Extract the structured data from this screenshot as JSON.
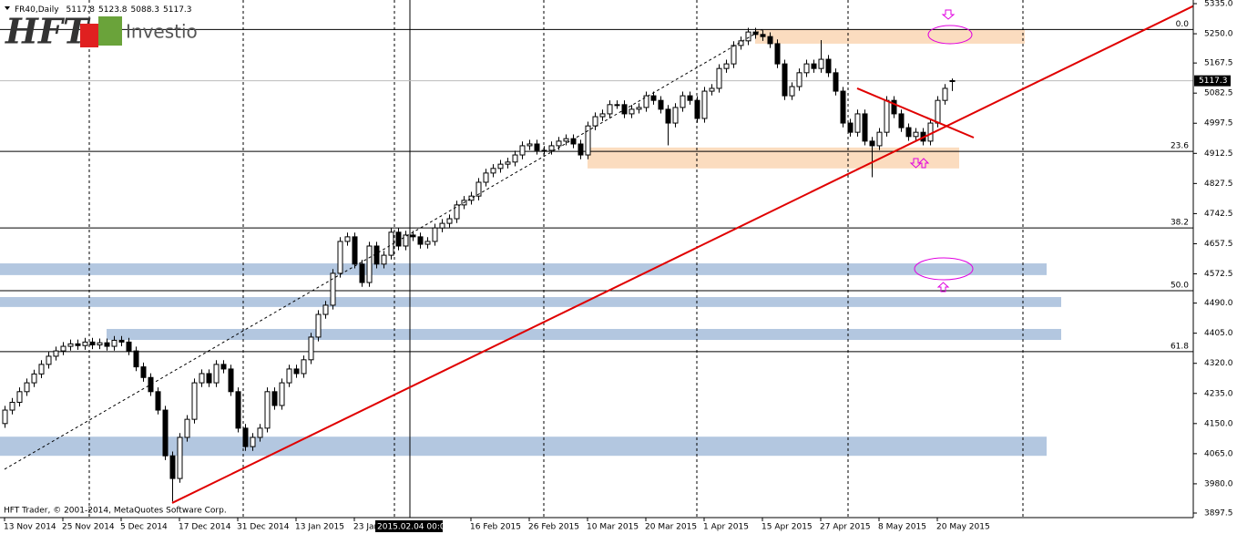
{
  "chart_data": {
    "type": "candlestick",
    "symbol": "FR40,Daily",
    "logo": {
      "mark": "HFT",
      "name": "Investio"
    },
    "footer": "HFT Trader, © 2001-2014, MetaQuotes Software Corp.",
    "crosshair_label": "2015.02.04 00:00",
    "ylim": [
      3897.5,
      5335
    ],
    "yticks": [
      {
        "value": 5335,
        "label": "5335.0"
      },
      {
        "value": 5250,
        "label": "5250.0"
      },
      {
        "value": 5167.5,
        "label": "5167.5"
      },
      {
        "value": 5082.5,
        "label": "5082.5"
      },
      {
        "value": 4997.5,
        "label": "4997.5"
      },
      {
        "value": 4912.5,
        "label": "4912.5"
      },
      {
        "value": 4827.5,
        "label": "4827.5"
      },
      {
        "value": 4742.5,
        "label": "4742.5"
      },
      {
        "value": 4657.5,
        "label": "4657.5"
      },
      {
        "value": 4572.5,
        "label": "4572.5"
      },
      {
        "value": 4490,
        "label": "4490.0"
      },
      {
        "value": 4405,
        "label": "4405.0"
      },
      {
        "value": 4320,
        "label": "4320.0"
      },
      {
        "value": 4235,
        "label": "4235.0"
      },
      {
        "value": 4150,
        "label": "4150.0"
      },
      {
        "value": 4065,
        "label": "4065.0"
      },
      {
        "value": 3980,
        "label": "3980.0"
      },
      {
        "value": 3897.5,
        "label": "3897.5"
      }
    ],
    "categories": [
      "13 Nov 2014",
      null,
      null,
      null,
      null,
      null,
      null,
      null,
      "25 Nov 2014",
      null,
      null,
      null,
      null,
      null,
      null,
      null,
      "5 Dec 2014",
      null,
      null,
      null,
      null,
      null,
      null,
      null,
      "17 Dec 2014",
      null,
      null,
      null,
      null,
      null,
      null,
      null,
      "31 Dec 2014",
      null,
      null,
      null,
      null,
      null,
      null,
      null,
      "13 Jan 2015",
      null,
      null,
      null,
      null,
      null,
      null,
      null,
      "23 Jan 2015",
      null,
      null,
      null,
      null,
      null,
      null,
      null,
      null,
      null,
      null,
      null,
      null,
      null,
      null,
      null,
      "16 Feb 2015",
      null,
      null,
      null,
      null,
      null,
      null,
      null,
      "26 Feb 2015",
      null,
      null,
      null,
      null,
      null,
      null,
      null,
      "10 Mar 2015",
      null,
      null,
      null,
      null,
      null,
      null,
      null,
      "20 Mar 2015",
      null,
      null,
      null,
      null,
      null,
      null,
      null,
      "1 Apr 2015",
      null,
      null,
      null,
      null,
      null,
      null,
      null,
      "15 Apr 2015",
      null,
      null,
      null,
      null,
      null,
      null,
      null,
      "27 Apr 2015",
      null,
      null,
      null,
      null,
      null,
      null,
      null,
      "8 May 2015",
      null,
      null,
      null,
      null,
      null,
      null,
      null,
      "20 May 2015",
      null,
      null
    ],
    "open": [
      4150,
      4188,
      4210,
      4240,
      4265,
      4290,
      4317,
      4340,
      4355,
      4368,
      4375,
      4370,
      4380,
      4372,
      4378,
      4368,
      4385,
      4380,
      4355,
      4310,
      4280,
      4240,
      4188,
      4059,
      3995,
      4111,
      4162,
      4265,
      4291,
      4265,
      4317,
      4304,
      4240,
      4137,
      4085,
      4111,
      4137,
      4240,
      4201,
      4265,
      4304,
      4291,
      4330,
      4394,
      4458,
      4484,
      4574,
      4664,
      4677,
      4600,
      4548,
      4651,
      4600,
      4625,
      4690,
      4651,
      4682,
      4677,
      4656,
      4664,
      4702,
      4715,
      4728,
      4767,
      4780,
      4792,
      4831,
      4857,
      4870,
      4882,
      4888,
      4908,
      4934,
      4939,
      4921,
      4921,
      4934,
      4947,
      4954,
      4939,
      4908,
      4990,
      5016,
      5024,
      5050,
      5050,
      5024,
      5037,
      5042,
      5075,
      5062,
      5037,
      4998,
      5042,
      5075,
      5062,
      5011,
      5088,
      5096,
      5152,
      5165,
      5217,
      5230,
      5255,
      5248,
      5242,
      5222,
      5165,
      5075,
      5101,
      5140,
      5165,
      5152,
      5178,
      5140,
      5088,
      4998,
      4972,
      5024,
      4947,
      4934,
      4972,
      5062,
      5024,
      4985,
      4960,
      4972,
      4947,
      4998,
      5062,
      5117.8
    ],
    "high": [
      4200,
      4222,
      4252,
      4277,
      4302,
      4329,
      4352,
      4367,
      4380,
      4387,
      4387,
      4392,
      4392,
      4390,
      4390,
      4397,
      4397,
      4392,
      4367,
      4322,
      4292,
      4252,
      4200,
      4071,
      4123,
      4174,
      4277,
      4303,
      4303,
      4329,
      4329,
      4316,
      4252,
      4149,
      4123,
      4149,
      4252,
      4252,
      4277,
      4316,
      4316,
      4342,
      4406,
      4470,
      4496,
      4586,
      4676,
      4689,
      4689,
      4612,
      4663,
      4663,
      4637,
      4702,
      4702,
      4694,
      4694,
      4689,
      4676,
      4714,
      4727,
      4740,
      4779,
      4792,
      4804,
      4843,
      4869,
      4882,
      4894,
      4900,
      4920,
      4946,
      4951,
      4951,
      4933,
      4946,
      4959,
      4966,
      4966,
      4951,
      5002,
      5028,
      5036,
      5062,
      5062,
      5062,
      5049,
      5054,
      5087,
      5087,
      5074,
      5049,
      5054,
      5087,
      5087,
      5074,
      5100,
      5108,
      5164,
      5177,
      5229,
      5242,
      5267,
      5267,
      5260,
      5254,
      5234,
      5177,
      5113,
      5152,
      5177,
      5177,
      5232,
      5190,
      5152,
      5100,
      5010,
      5036,
      5036,
      4959,
      4984,
      5074,
      5074,
      5036,
      4997,
      4984,
      4984,
      5010,
      5074,
      5108,
      5123.8
    ],
    "low": [
      4138,
      4176,
      4198,
      4228,
      4253,
      4278,
      4305,
      4328,
      4343,
      4356,
      4358,
      4358,
      4360,
      4360,
      4356,
      4356,
      4368,
      4343,
      4298,
      4268,
      4228,
      4176,
      4047,
      3930,
      3983,
      4099,
      4150,
      4253,
      4253,
      4253,
      4292,
      4228,
      4125,
      4073,
      4073,
      4099,
      4125,
      4189,
      4189,
      4253,
      4279,
      4279,
      4318,
      4382,
      4446,
      4472,
      4562,
      4652,
      4588,
      4536,
      4536,
      4588,
      4588,
      4613,
      4639,
      4639,
      4665,
      4644,
      4644,
      4652,
      4690,
      4703,
      4716,
      4755,
      4768,
      4780,
      4819,
      4845,
      4858,
      4870,
      4876,
      4896,
      4922,
      4909,
      4909,
      4909,
      4922,
      4935,
      4927,
      4896,
      4896,
      4978,
      5004,
      5012,
      5038,
      5012,
      5012,
      5025,
      5030,
      5050,
      5025,
      4935,
      4986,
      5030,
      5050,
      4999,
      4999,
      5076,
      5084,
      5140,
      5153,
      5205,
      5218,
      5236,
      5230,
      5210,
      5153,
      5063,
      5063,
      5089,
      5128,
      5140,
      5140,
      5128,
      5076,
      4986,
      4960,
      4960,
      4935,
      4845,
      4922,
      4960,
      5012,
      4973,
      4948,
      4948,
      4935,
      4935,
      4986,
      5050,
      5088.3
    ],
    "close": [
      4188,
      4210,
      4240,
      4265,
      4290,
      4317,
      4340,
      4355,
      4368,
      4375,
      4370,
      4380,
      4372,
      4378,
      4368,
      4385,
      4380,
      4355,
      4310,
      4280,
      4240,
      4188,
      4059,
      3995,
      4111,
      4162,
      4265,
      4291,
      4265,
      4317,
      4304,
      4240,
      4137,
      4085,
      4111,
      4137,
      4240,
      4201,
      4265,
      4304,
      4291,
      4330,
      4394,
      4458,
      4484,
      4574,
      4664,
      4677,
      4600,
      4548,
      4651,
      4600,
      4625,
      4690,
      4651,
      4682,
      4677,
      4656,
      4664,
      4702,
      4715,
      4728,
      4767,
      4780,
      4792,
      4831,
      4857,
      4870,
      4882,
      4888,
      4908,
      4934,
      4939,
      4921,
      4921,
      4934,
      4947,
      4954,
      4939,
      4908,
      4990,
      5016,
      5024,
      5050,
      5050,
      5024,
      5037,
      5042,
      5075,
      5062,
      5037,
      4998,
      5042,
      5075,
      5062,
      5011,
      5088,
      5096,
      5152,
      5165,
      5217,
      5230,
      5255,
      5248,
      5242,
      5222,
      5165,
      5075,
      5101,
      5140,
      5165,
      5152,
      5178,
      5140,
      5088,
      4998,
      4972,
      5024,
      4947,
      4934,
      4972,
      5062,
      5024,
      4985,
      4960,
      4972,
      4947,
      4998,
      5062,
      5096,
      5117.3
    ],
    "up_color": "#ffffff",
    "down_color": "#000000",
    "fib_levels": [
      {
        "value": 5262,
        "label": "0.0"
      },
      {
        "value": 4918,
        "label": "23.6"
      },
      {
        "value": 4702,
        "label": "38.2"
      },
      {
        "value": 4525,
        "label": "50.0"
      },
      {
        "value": 4353,
        "label": "61.8"
      }
    ],
    "zones": [
      {
        "from": 103,
        "to": 140,
        "low": 5222,
        "high": 5262,
        "color": "#fbdcbf"
      },
      {
        "from": 80,
        "to": 131,
        "low": 4870,
        "high": 4929,
        "color": "#fbdcbf"
      },
      {
        "from": -1,
        "to": 143,
        "low": 4569,
        "high": 4602,
        "color": "#b3c7e0"
      },
      {
        "from": -1,
        "to": 145,
        "low": 4479,
        "high": 4507,
        "color": "#b3c7e0"
      },
      {
        "from": 14,
        "to": 145,
        "low": 4386,
        "high": 4417,
        "color": "#b3c7e0"
      },
      {
        "from": -1,
        "to": 143,
        "low": 4059,
        "high": 4113,
        "color": "#b3c7e0"
      }
    ],
    "trendlines": [
      {
        "from": [
          23,
          3926
        ],
        "to": [
          164,
          5337
        ],
        "color": "#e00000",
        "dash": false
      },
      {
        "from": [
          117,
          5096
        ],
        "to": [
          133,
          4957
        ],
        "color": "#e00000",
        "dash": false
      },
      {
        "from": [
          0,
          4021
        ],
        "to": [
          104,
          5262
        ],
        "color": "#000000",
        "dash": true
      }
    ]
  }
}
